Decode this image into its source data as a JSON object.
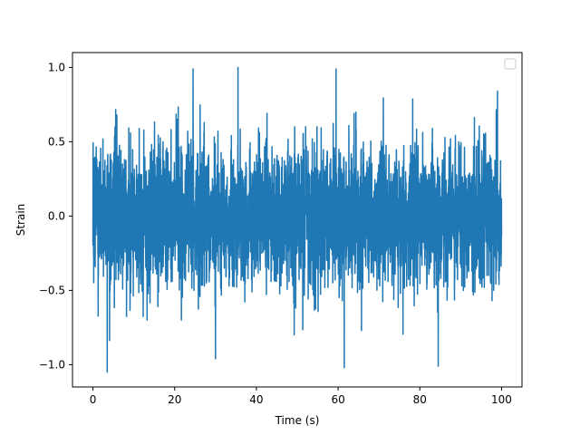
{
  "chart_data": {
    "type": "line",
    "title": "",
    "xlabel": "Time (s)",
    "ylabel": "Strain",
    "xlim": [
      -5,
      105
    ],
    "ylim": [
      -1.15,
      1.1
    ],
    "x_ticks": [
      0,
      20,
      40,
      60,
      80,
      100
    ],
    "x_tick_labels": [
      "0",
      "20",
      "40",
      "60",
      "80",
      "100"
    ],
    "y_ticks": [
      -1.0,
      -0.5,
      0.0,
      0.5,
      1.0
    ],
    "y_tick_labels": [
      "−1.0",
      "−0.5",
      "0.0",
      "0.5",
      "1.0"
    ],
    "grid": false,
    "legend": {
      "placement": "top-right",
      "entries": []
    },
    "series": [
      {
        "color": "#1f77b4",
        "description_kind": "noise-like signal",
        "x_start": 0,
        "x_end": 100,
        "typical_envelope": [
          -0.55,
          0.55
        ],
        "extremes": [
          {
            "x": 3.5,
            "y": -1.05
          },
          {
            "x": 24.5,
            "y": 0.99
          },
          {
            "x": 35.5,
            "y": 1.0
          },
          {
            "x": 30.0,
            "y": -0.96
          },
          {
            "x": 59.5,
            "y": 0.99
          },
          {
            "x": 61.5,
            "y": -1.02
          },
          {
            "x": 84.5,
            "y": -1.01
          },
          {
            "x": 99.0,
            "y": 0.84
          }
        ]
      }
    ]
  }
}
